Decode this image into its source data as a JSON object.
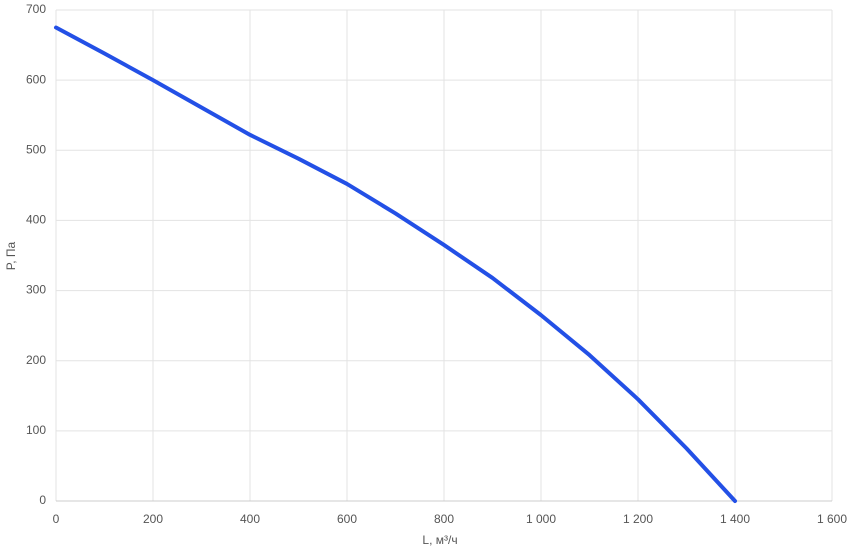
{
  "chart_data": {
    "type": "line",
    "x_label": "L, м³/ч",
    "y_label": "P, Па",
    "x": [
      0,
      100,
      200,
      300,
      400,
      500,
      600,
      700,
      800,
      900,
      1000,
      1100,
      1200,
      1300,
      1400
    ],
    "series": [
      {
        "name": "P",
        "color": "#2350e6",
        "values": [
          675,
          638,
          600,
          561,
          522,
          488,
          452,
          410,
          365,
          318,
          265,
          208,
          145,
          75,
          0
        ]
      }
    ],
    "xlim": [
      0,
      1600
    ],
    "xticks": [
      0,
      200,
      400,
      600,
      800,
      {
        "value": 1000,
        "label": "1 000"
      },
      {
        "value": 1200,
        "label": "1 200"
      },
      {
        "value": 1400,
        "label": "1 400"
      },
      {
        "value": 1600,
        "label": "1 600"
      }
    ],
    "ylim": [
      0,
      700
    ],
    "yticks": [
      0,
      100,
      200,
      300,
      400,
      500,
      600,
      700
    ],
    "grid": true
  }
}
